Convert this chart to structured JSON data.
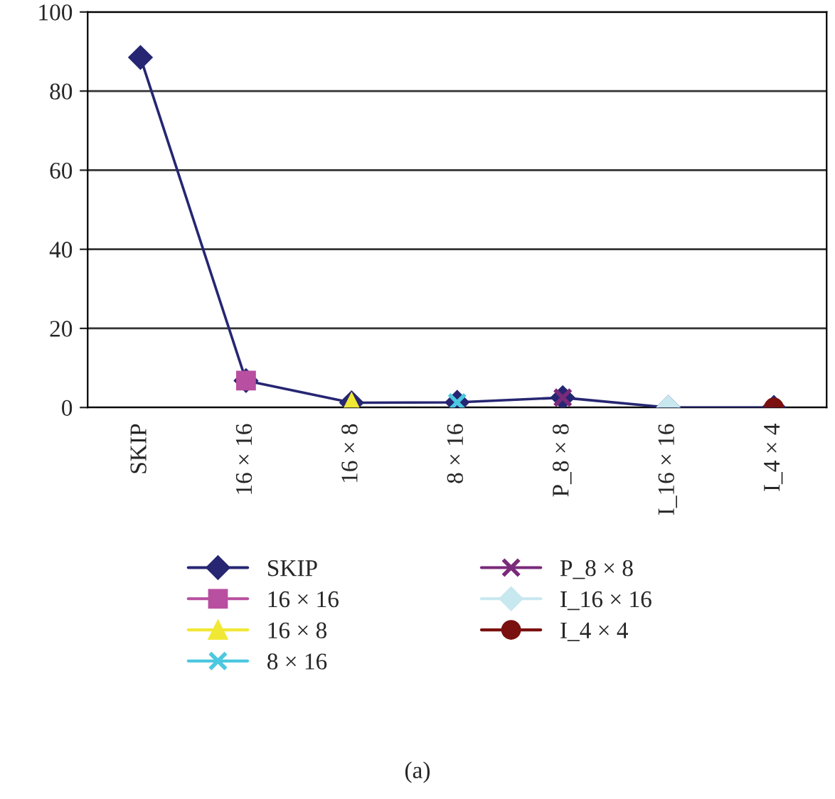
{
  "chart_data": {
    "type": "line",
    "categories": [
      "SKIP",
      "16 × 16",
      "16 × 8",
      "8 × 16",
      "P_8 × 8",
      "I_16 × 16",
      "I_4 × 4"
    ],
    "series": [
      {
        "name": "SKIP",
        "color": "#262673",
        "marker": "diamond",
        "values": [
          88.5,
          6.8,
          1.2,
          1.3,
          2.5,
          0,
          0
        ]
      },
      {
        "name": "16 × 16",
        "color": "#b84fa0",
        "marker": "square",
        "values": [
          null,
          6.8,
          null,
          null,
          null,
          null,
          null
        ]
      },
      {
        "name": "16 × 8",
        "color": "#f0e834",
        "marker": "triangle",
        "values": [
          null,
          null,
          1.2,
          null,
          null,
          null,
          null
        ]
      },
      {
        "name": "8 × 16",
        "color": "#4cc8e0",
        "marker": "cross",
        "values": [
          null,
          null,
          null,
          1.3,
          null,
          null,
          null
        ]
      },
      {
        "name": "P_8 × 8",
        "color": "#7a2a7a",
        "marker": "cross",
        "values": [
          null,
          null,
          null,
          null,
          2.5,
          null,
          null
        ]
      },
      {
        "name": "I_16 × 16",
        "color": "#c8e8f0",
        "marker": "diamond",
        "values": [
          null,
          null,
          null,
          null,
          null,
          0,
          null
        ]
      },
      {
        "name": "I_4 × 4",
        "color": "#7a1010",
        "marker": "circle",
        "values": [
          null,
          null,
          null,
          null,
          null,
          null,
          0
        ]
      }
    ],
    "ylim": [
      0,
      100
    ],
    "yticks": [
      0,
      20,
      40,
      60,
      80,
      100
    ],
    "grid": "y",
    "legend": "bottom",
    "line_style": "solid",
    "annotations": [
      "(a)"
    ]
  }
}
